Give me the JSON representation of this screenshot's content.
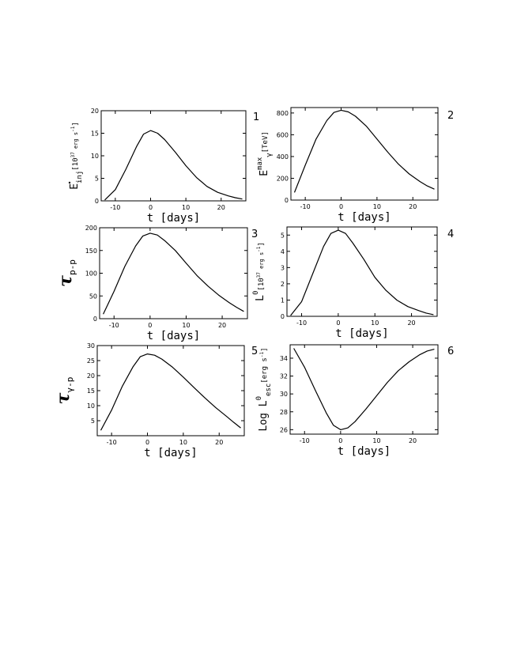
{
  "chart_data": [
    {
      "id": "1",
      "type": "line",
      "panel_number": "1",
      "xlabel": "t [days]",
      "ylabel": {
        "symbol": "E",
        "sub": "inj",
        "dot": true,
        "unit": "[10",
        "unit_sup": "37",
        "unit_tail": " erg s",
        "unit_sup2": "-1",
        "unit_close": "]"
      },
      "xlim": [
        -14,
        27
      ],
      "ylim": [
        0,
        20
      ],
      "xticks": [
        -10,
        0,
        10,
        20
      ],
      "yticks": [
        0,
        5,
        10,
        15,
        20
      ],
      "series": [
        {
          "x": [
            -13,
            -10,
            -7,
            -4,
            -2,
            0,
            2,
            4,
            7,
            10,
            13,
            16,
            19,
            22,
            24,
            26
          ],
          "y": [
            0.2,
            2.5,
            7.0,
            12.0,
            14.8,
            15.6,
            15.0,
            13.6,
            10.8,
            7.8,
            5.2,
            3.2,
            1.9,
            1.1,
            0.7,
            0.4
          ]
        }
      ]
    },
    {
      "id": "2",
      "type": "line",
      "panel_number": "2",
      "xlabel": "t [days]",
      "ylabel": {
        "symbol": "E",
        "sub": "γ",
        "sup": "max",
        "unit": "[TeV]"
      },
      "xlim": [
        -14,
        27
      ],
      "ylim": [
        0,
        850
      ],
      "xticks": [
        -10,
        0,
        10,
        20
      ],
      "yticks": [
        0,
        200,
        400,
        600,
        800
      ],
      "series": [
        {
          "x": [
            -13,
            -10,
            -7,
            -4,
            -2,
            0,
            2,
            4,
            7,
            10,
            13,
            16,
            19,
            22,
            24,
            26
          ],
          "y": [
            70,
            320,
            560,
            730,
            805,
            825,
            810,
            770,
            680,
            560,
            440,
            330,
            240,
            170,
            130,
            100
          ]
        }
      ]
    },
    {
      "id": "3",
      "type": "line",
      "panel_number": "3",
      "xlabel": "t [days]",
      "ylabel": {
        "symbol": "τ",
        "sub": "p-p"
      },
      "xlim": [
        -14,
        27
      ],
      "ylim": [
        0,
        200
      ],
      "xticks": [
        -10,
        0,
        10,
        20
      ],
      "yticks": [
        0,
        50,
        100,
        150,
        200
      ],
      "series": [
        {
          "x": [
            -13,
            -10,
            -7,
            -4,
            -2,
            0,
            2,
            4,
            7,
            10,
            13,
            16,
            19,
            22,
            24,
            26
          ],
          "y": [
            10,
            60,
            115,
            160,
            182,
            188,
            184,
            172,
            150,
            122,
            95,
            72,
            52,
            35,
            25,
            16
          ]
        }
      ]
    },
    {
      "id": "4",
      "type": "line",
      "panel_number": "4",
      "xlabel": "t [days]",
      "ylabel": {
        "symbol": "L",
        "sup": "0",
        "unit": "[10",
        "unit_sup": "37",
        "unit_tail": " erg s",
        "unit_sup2": "-1",
        "unit_close": "]"
      },
      "xlim": [
        -14,
        27
      ],
      "ylim": [
        0,
        5.5
      ],
      "xticks": [
        -10,
        0,
        10,
        20
      ],
      "yticks": [
        0,
        1,
        2,
        3,
        4,
        5
      ],
      "series": [
        {
          "x": [
            -13,
            -10,
            -7,
            -4,
            -2,
            0,
            2,
            4,
            7,
            10,
            13,
            16,
            19,
            22,
            24,
            26
          ],
          "y": [
            0.05,
            0.9,
            2.6,
            4.3,
            5.1,
            5.3,
            5.1,
            4.5,
            3.5,
            2.4,
            1.6,
            1.0,
            0.6,
            0.35,
            0.2,
            0.1
          ]
        }
      ]
    },
    {
      "id": "5",
      "type": "line",
      "panel_number": "5",
      "xlabel": "t [days]",
      "ylabel": {
        "symbol": "τ",
        "sub": "γ-p"
      },
      "xlim": [
        -14,
        27
      ],
      "ylim": [
        0,
        30
      ],
      "xticks": [
        -10,
        0,
        10,
        20
      ],
      "yticks": [
        5,
        10,
        15,
        20,
        25,
        30
      ],
      "series": [
        {
          "x": [
            -13,
            -10,
            -7,
            -4,
            -2,
            0,
            2,
            4,
            7,
            10,
            13,
            16,
            19,
            22,
            24,
            26
          ],
          "y": [
            1.8,
            8.5,
            16.5,
            23.0,
            26.3,
            27.2,
            26.8,
            25.5,
            22.8,
            19.5,
            16.0,
            12.6,
            9.4,
            6.5,
            4.5,
            2.6
          ]
        }
      ]
    },
    {
      "id": "6",
      "type": "line",
      "panel_number": "6",
      "xlabel": "t [days]",
      "ylabel": {
        "symbol": "Log L",
        "sub": "esc",
        "sup": "0",
        "unit": "[erg s",
        "unit_sup2": "-1",
        "unit_close": "]"
      },
      "xlim": [
        -14,
        27
      ],
      "ylim": [
        25.5,
        35.5
      ],
      "xticks": [
        -10,
        0,
        10,
        20
      ],
      "yticks": [
        26,
        28,
        30,
        32,
        34
      ],
      "series": [
        {
          "x": [
            -13,
            -10,
            -7,
            -4,
            -2,
            0,
            2,
            4,
            7,
            10,
            13,
            16,
            19,
            22,
            24,
            26
          ],
          "y": [
            35.1,
            33.0,
            30.4,
            27.9,
            26.5,
            26.0,
            26.2,
            26.9,
            28.3,
            29.8,
            31.3,
            32.6,
            33.6,
            34.4,
            34.8,
            35.0
          ]
        }
      ]
    }
  ]
}
